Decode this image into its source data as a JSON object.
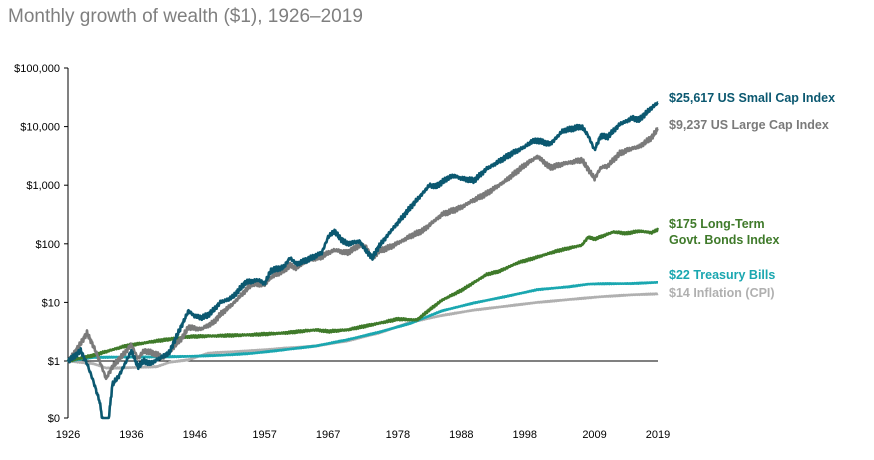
{
  "title": "Monthly growth of wealth ($1), 1926–2019",
  "chart_data": {
    "type": "line",
    "title": "Monthly growth of wealth ($1), 1926–2019",
    "xlabel": "",
    "ylabel": "",
    "y_scale": "log",
    "xlim": [
      1926,
      2019
    ],
    "ylim": [
      0.003,
      100000
    ],
    "x_ticks": [
      "1926",
      "1936",
      "1946",
      "1957",
      "1967",
      "1978",
      "1988",
      "1998",
      "2009",
      "2019"
    ],
    "y_ticks": [
      {
        "value": 100000,
        "label": "$100,000"
      },
      {
        "value": 10000,
        "label": "$10,000"
      },
      {
        "value": 1000,
        "label": "$1,000"
      },
      {
        "value": 100,
        "label": "$100"
      },
      {
        "value": 10,
        "label": "$10"
      },
      {
        "value": 1,
        "label": "$1"
      },
      {
        "value": 0.003,
        "label": "$0"
      }
    ],
    "grid": false,
    "series": [
      {
        "name": "US Small Cap Index",
        "label": "$25,617 US Small Cap Index",
        "label_lines": [
          "$25,617 US Small Cap Index"
        ],
        "color": "#0b5870",
        "points": [
          [
            1926,
            1
          ],
          [
            1927,
            1.2
          ],
          [
            1928,
            1.5
          ],
          [
            1929,
            0.9
          ],
          [
            1930,
            0.45
          ],
          [
            1931,
            0.2
          ],
          [
            1932,
            0.04
          ],
          [
            1933,
            0.4
          ],
          [
            1934,
            0.55
          ],
          [
            1935,
            0.9
          ],
          [
            1936,
            1.5
          ],
          [
            1937,
            0.8
          ],
          [
            1938,
            1.0
          ],
          [
            1939,
            0.9
          ],
          [
            1940,
            1.05
          ],
          [
            1941,
            1.2
          ],
          [
            1942,
            1.4
          ],
          [
            1943,
            2.5
          ],
          [
            1944,
            4.2
          ],
          [
            1945,
            7.2
          ],
          [
            1946,
            5.8
          ],
          [
            1947,
            5.5
          ],
          [
            1948,
            6.0
          ],
          [
            1949,
            7.5
          ],
          [
            1950,
            10
          ],
          [
            1951,
            11
          ],
          [
            1952,
            12.5
          ],
          [
            1954,
            22
          ],
          [
            1956,
            24
          ],
          [
            1957,
            21
          ],
          [
            1958,
            35
          ],
          [
            1960,
            40
          ],
          [
            1961,
            58
          ],
          [
            1962,
            45
          ],
          [
            1964,
            55
          ],
          [
            1966,
            70
          ],
          [
            1967,
            130
          ],
          [
            1968,
            165
          ],
          [
            1969,
            120
          ],
          [
            1970,
            100
          ],
          [
            1972,
            110
          ],
          [
            1973,
            75
          ],
          [
            1974,
            58
          ],
          [
            1975,
            90
          ],
          [
            1977,
            170
          ],
          [
            1980,
            420
          ],
          [
            1983,
            1000
          ],
          [
            1984,
            950
          ],
          [
            1986,
            1350
          ],
          [
            1987,
            1450
          ],
          [
            1988,
            1300
          ],
          [
            1990,
            1200
          ],
          [
            1992,
            1900
          ],
          [
            1996,
            3500
          ],
          [
            1998,
            4500
          ],
          [
            1999,
            5500
          ],
          [
            2000,
            5800
          ],
          [
            2002,
            5000
          ],
          [
            2004,
            8500
          ],
          [
            2007,
            10000
          ],
          [
            2008,
            7000
          ],
          [
            2009,
            4000
          ],
          [
            2010,
            7000
          ],
          [
            2011,
            6600
          ],
          [
            2013,
            11000
          ],
          [
            2015,
            14000
          ],
          [
            2016,
            13000
          ],
          [
            2018,
            21000
          ],
          [
            2019,
            25617
          ]
        ]
      },
      {
        "name": "US Large Cap Index",
        "label": "$9,237 US Large Cap Index",
        "label_lines": [
          "$9,237 US Large Cap Index"
        ],
        "color": "#7a7a7a",
        "points": [
          [
            1926,
            1
          ],
          [
            1927,
            1.4
          ],
          [
            1928,
            2.0
          ],
          [
            1929,
            3.0
          ],
          [
            1930,
            1.8
          ],
          [
            1931,
            1.0
          ],
          [
            1932,
            0.5
          ],
          [
            1933,
            0.8
          ],
          [
            1935,
            1.4
          ],
          [
            1936,
            1.9
          ],
          [
            1937,
            1.1
          ],
          [
            1938,
            1.5
          ],
          [
            1939,
            1.4
          ],
          [
            1940,
            1.3
          ],
          [
            1941,
            1.15
          ],
          [
            1942,
            1.4
          ],
          [
            1943,
            1.9
          ],
          [
            1944,
            2.5
          ],
          [
            1945,
            3.8
          ],
          [
            1946,
            3.6
          ],
          [
            1947,
            3.5
          ],
          [
            1948,
            4.0
          ],
          [
            1949,
            4.6
          ],
          [
            1950,
            6.2
          ],
          [
            1952,
            9.5
          ],
          [
            1954,
            16
          ],
          [
            1955,
            21
          ],
          [
            1957,
            20
          ],
          [
            1958,
            27
          ],
          [
            1960,
            35
          ],
          [
            1961,
            43
          ],
          [
            1962,
            38
          ],
          [
            1964,
            55
          ],
          [
            1966,
            60
          ],
          [
            1967,
            70
          ],
          [
            1968,
            78
          ],
          [
            1970,
            70
          ],
          [
            1972,
            95
          ],
          [
            1973,
            90
          ],
          [
            1974,
            55
          ],
          [
            1975,
            75
          ],
          [
            1977,
            90
          ],
          [
            1980,
            135
          ],
          [
            1982,
            170
          ],
          [
            1985,
            320
          ],
          [
            1987,
            380
          ],
          [
            1988,
            420
          ],
          [
            1990,
            560
          ],
          [
            1992,
            720
          ],
          [
            1995,
            1200
          ],
          [
            1998,
            2200
          ],
          [
            2000,
            3100
          ],
          [
            2002,
            2000
          ],
          [
            2004,
            2300
          ],
          [
            2007,
            2700
          ],
          [
            2009,
            1300
          ],
          [
            2010,
            2000
          ],
          [
            2011,
            2100
          ],
          [
            2013,
            3500
          ],
          [
            2015,
            4300
          ],
          [
            2016,
            4500
          ],
          [
            2018,
            6500
          ],
          [
            2019,
            9237
          ]
        ]
      },
      {
        "name": "Long-Term Govt. Bonds Index",
        "label": "$175 Long-Term Govt. Bonds Index",
        "label_lines": [
          "$175 Long-Term",
          "Govt. Bonds Index"
        ],
        "color": "#3f7a2a",
        "points": [
          [
            1926,
            1
          ],
          [
            1930,
            1.25
          ],
          [
            1935,
            1.8
          ],
          [
            1940,
            2.2
          ],
          [
            1945,
            2.6
          ],
          [
            1950,
            2.7
          ],
          [
            1955,
            2.8
          ],
          [
            1960,
            3.0
          ],
          [
            1965,
            3.4
          ],
          [
            1967,
            3.2
          ],
          [
            1970,
            3.4
          ],
          [
            1975,
            4.4
          ],
          [
            1978,
            5.2
          ],
          [
            1981,
            5.0
          ],
          [
            1983,
            7.5
          ],
          [
            1985,
            11
          ],
          [
            1988,
            16
          ],
          [
            1992,
            30
          ],
          [
            1994,
            34
          ],
          [
            1997,
            48
          ],
          [
            1999,
            55
          ],
          [
            2003,
            75
          ],
          [
            2007,
            95
          ],
          [
            2008,
            130
          ],
          [
            2009,
            120
          ],
          [
            2012,
            160
          ],
          [
            2014,
            150
          ],
          [
            2016,
            165
          ],
          [
            2018,
            155
          ],
          [
            2019,
            175
          ]
        ]
      },
      {
        "name": "Treasury Bills",
        "label": "$22 Treasury Bills",
        "label_lines": [
          "$22 Treasury Bills"
        ],
        "color": "#1aa7b0",
        "points": [
          [
            1926,
            1
          ],
          [
            1930,
            1.15
          ],
          [
            1935,
            1.17
          ],
          [
            1940,
            1.17
          ],
          [
            1945,
            1.2
          ],
          [
            1950,
            1.25
          ],
          [
            1955,
            1.35
          ],
          [
            1960,
            1.55
          ],
          [
            1965,
            1.8
          ],
          [
            1970,
            2.3
          ],
          [
            1975,
            3.1
          ],
          [
            1980,
            4.4
          ],
          [
            1985,
            7.2
          ],
          [
            1990,
            9.8
          ],
          [
            1995,
            12.6
          ],
          [
            2000,
            16.5
          ],
          [
            2005,
            18.5
          ],
          [
            2008,
            20.5
          ],
          [
            2010,
            20.8
          ],
          [
            2015,
            21
          ],
          [
            2019,
            22
          ]
        ]
      },
      {
        "name": "Inflation (CPI)",
        "label": "$14 Inflation (CPI)",
        "label_lines": [
          "$14 Inflation (CPI)"
        ],
        "color": "#b0b0b0",
        "points": [
          [
            1926,
            1
          ],
          [
            1928,
            0.95
          ],
          [
            1930,
            0.9
          ],
          [
            1932,
            0.76
          ],
          [
            1934,
            0.76
          ],
          [
            1940,
            0.8
          ],
          [
            1942,
            0.95
          ],
          [
            1945,
            1.05
          ],
          [
            1948,
            1.35
          ],
          [
            1950,
            1.4
          ],
          [
            1955,
            1.5
          ],
          [
            1960,
            1.65
          ],
          [
            1965,
            1.8
          ],
          [
            1970,
            2.2
          ],
          [
            1975,
            3.0
          ],
          [
            1980,
            4.6
          ],
          [
            1985,
            6.0
          ],
          [
            1990,
            7.4
          ],
          [
            1995,
            8.6
          ],
          [
            2000,
            10
          ],
          [
            2005,
            11.2
          ],
          [
            2010,
            12.5
          ],
          [
            2015,
            13.5
          ],
          [
            2019,
            14
          ]
        ]
      }
    ]
  }
}
